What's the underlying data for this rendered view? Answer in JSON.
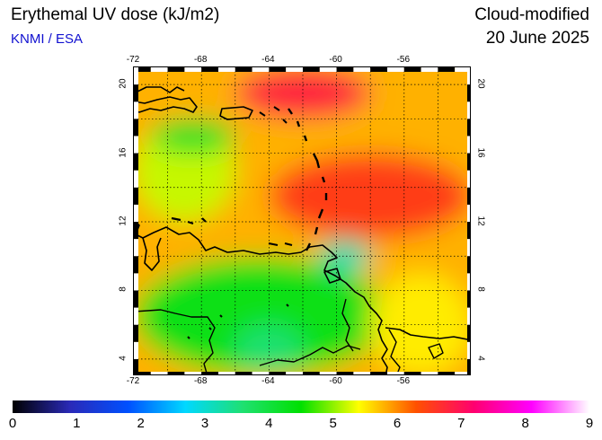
{
  "header": {
    "title": "Erythemal UV dose (kJ/m2)",
    "credit": "KNMI / ESA",
    "product": "Cloud-modified",
    "date": "20 June 2025"
  },
  "map": {
    "lon_range": [
      -72,
      -52
    ],
    "lat_range": [
      3,
      21
    ],
    "lon_ticks": [
      "-72",
      "-68",
      "-64",
      "-60",
      "-56"
    ],
    "lon_values": [
      -72,
      -68,
      -64,
      -60,
      -56
    ],
    "lat_ticks": [
      "4",
      "8",
      "12",
      "16",
      "20"
    ],
    "lat_values": [
      4,
      8,
      12,
      16,
      20
    ],
    "grid": true,
    "grid_step_deg": 2,
    "coastline_color": "#000000",
    "dose_regions": [
      {
        "level": 5.8,
        "lon": [
          -72,
          -52
        ],
        "lat": [
          3,
          21
        ]
      },
      {
        "level": 6.8,
        "lon": [
          -66,
          -58
        ],
        "lat": [
          18,
          21
        ]
      },
      {
        "level": 6.5,
        "lon": [
          -64,
          -52
        ],
        "lat": [
          11,
          16
        ]
      },
      {
        "level": 5.2,
        "lon": [
          -72,
          -66
        ],
        "lat": [
          12,
          18
        ]
      },
      {
        "level": 4.2,
        "lon": [
          -71,
          -66
        ],
        "lat": [
          16,
          18
        ]
      },
      {
        "level": 4.3,
        "lon": [
          -72,
          -57
        ],
        "lat": [
          3,
          10
        ]
      },
      {
        "level": 3.2,
        "lon": [
          -61,
          -58
        ],
        "lat": [
          9,
          11
        ]
      },
      {
        "level": 3.6,
        "lon": [
          -66,
          -62
        ],
        "lat": [
          3,
          6
        ]
      },
      {
        "level": 5.5,
        "lon": [
          -58,
          -52
        ],
        "lat": [
          3,
          9
        ]
      }
    ]
  },
  "colorbar": {
    "labels": [
      "0",
      "1",
      "2",
      "3",
      "4",
      "5",
      "6",
      "7",
      "8",
      "9"
    ],
    "min": 0,
    "max": 9,
    "colors": [
      "#000000",
      "#2a2ab8",
      "#0050ff",
      "#00d8ff",
      "#1fe070",
      "#00e000",
      "#ffff00",
      "#ff5000",
      "#ff0070",
      "#ff00ff",
      "#ffffff"
    ]
  }
}
